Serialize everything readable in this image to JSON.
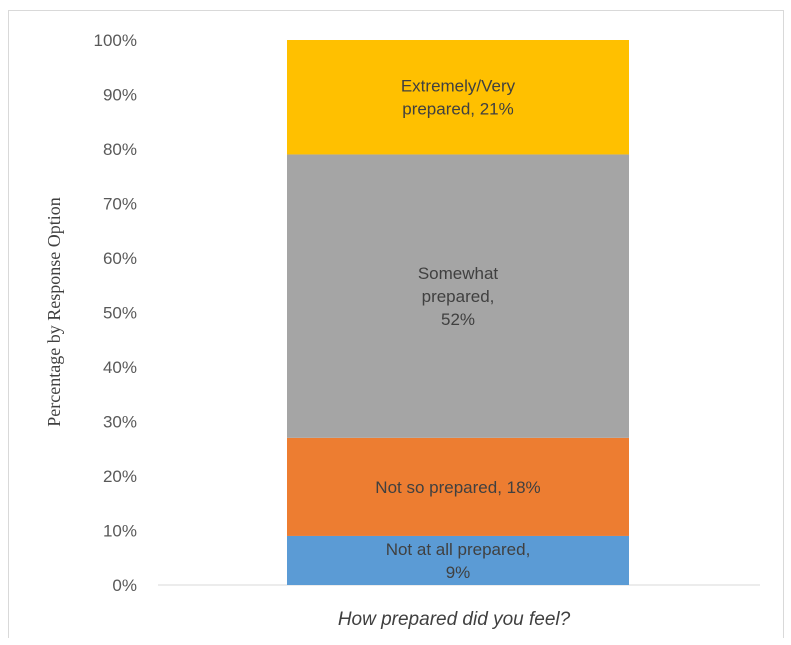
{
  "chart_data": {
    "type": "bar",
    "stacked": true,
    "categories": [
      ""
    ],
    "series": [
      {
        "name": "Not at all prepared",
        "values": [
          9
        ],
        "color": "#5b9bd5",
        "label": "Not at all prepared, 9%"
      },
      {
        "name": "Not so prepared",
        "values": [
          18
        ],
        "color": "#ed7d31",
        "label": "Not so prepared, 18%"
      },
      {
        "name": "Somewhat prepared",
        "values": [
          52
        ],
        "color": "#a5a5a5",
        "label": "Somewhat prepared, 52%"
      },
      {
        "name": "Extremely/Very prepared",
        "values": [
          21
        ],
        "color": "#ffc000",
        "label": "Extremely/Very prepared, 21%"
      }
    ],
    "title": "",
    "xlabel": "How prepared did you feel?",
    "ylabel": "Percentage by Response Option",
    "ylim": [
      0,
      100
    ],
    "yticks": [
      "0%",
      "10%",
      "20%",
      "30%",
      "40%",
      "50%",
      "60%",
      "70%",
      "80%",
      "90%",
      "100%"
    ],
    "grid": false,
    "legend": "none"
  }
}
